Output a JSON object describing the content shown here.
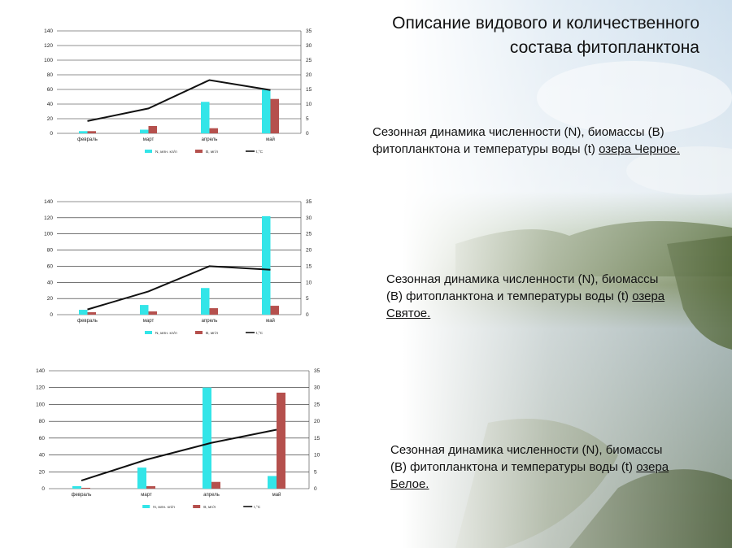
{
  "title": {
    "line1": "Описание видового и количественного",
    "line2": "состава фитопланктона"
  },
  "captions": [
    {
      "pre": "Сезонная динамика численности (N), биомассы (B) фитопланктона и температуры воды (t) ",
      "lake": "озера Черное."
    },
    {
      "pre": "Сезонная динамика численности (N), биомассы (B) фитопланктона и температуры воды (t) ",
      "lake": "озера Святое."
    },
    {
      "pre": "Сезонная динамика численности (N), биомассы (B) фитопланктона и температуры воды (t) ",
      "lake": "озера Белое."
    }
  ],
  "colors": {
    "n_bar": "#33e5e8",
    "b_bar": "#b5504d",
    "t_line": "#111111"
  },
  "chart_data": [
    {
      "type": "bar",
      "categories": [
        "февраль",
        "март",
        "апрель",
        "май"
      ],
      "series": [
        {
          "name": "N, млн. кл/л",
          "kind": "bar",
          "axis": "left",
          "values": [
            3,
            5,
            43,
            60
          ]
        },
        {
          "name": "B, мг/л",
          "kind": "bar",
          "axis": "left",
          "values": [
            3,
            10,
            7,
            47
          ]
        },
        {
          "name": "t,°C",
          "kind": "line",
          "axis": "right",
          "values": [
            4.2,
            8.5,
            18.2,
            14.8
          ]
        }
      ],
      "ylim": [
        0,
        140
      ],
      "yticks": [
        0,
        20,
        40,
        60,
        80,
        100,
        120,
        140
      ],
      "y2lim": [
        0,
        35
      ],
      "y2ticks": [
        0,
        5,
        10,
        15,
        20,
        25,
        30,
        35
      ],
      "grid": true,
      "legend": "bottom"
    },
    {
      "type": "bar",
      "categories": [
        "февраль",
        "март",
        "апрель",
        "май"
      ],
      "series": [
        {
          "name": "N, млн. кл/л",
          "kind": "bar",
          "axis": "left",
          "values": [
            6,
            12,
            33,
            122
          ]
        },
        {
          "name": "B, мг/л",
          "kind": "bar",
          "axis": "left",
          "values": [
            3,
            4,
            8,
            11
          ]
        },
        {
          "name": "t,°C",
          "kind": "line",
          "axis": "right",
          "values": [
            1.6,
            7.2,
            15,
            13.9
          ]
        }
      ],
      "ylim": [
        0,
        140
      ],
      "yticks": [
        0,
        20,
        40,
        60,
        80,
        100,
        120,
        140
      ],
      "y2lim": [
        0,
        35
      ],
      "y2ticks": [
        0,
        5,
        10,
        15,
        20,
        25,
        30,
        35
      ],
      "grid": true,
      "legend": "bottom"
    },
    {
      "type": "bar",
      "categories": [
        "февраль",
        "март",
        "апрель",
        "май"
      ],
      "series": [
        {
          "name": "N, млн. кл/л",
          "kind": "bar",
          "axis": "left",
          "values": [
            3,
            25,
            120,
            15
          ]
        },
        {
          "name": "B, мг/л",
          "kind": "bar",
          "axis": "left",
          "values": [
            1,
            3,
            8,
            114
          ]
        },
        {
          "name": "t,°C",
          "kind": "line",
          "axis": "right",
          "values": [
            2.4,
            8.6,
            13.6,
            17.5
          ]
        }
      ],
      "ylim": [
        0,
        140
      ],
      "yticks": [
        0,
        20,
        40,
        60,
        80,
        100,
        120,
        140
      ],
      "y2lim": [
        0,
        35
      ],
      "y2ticks": [
        0,
        5,
        10,
        15,
        20,
        25,
        30,
        35
      ],
      "grid": true,
      "legend": "bottom"
    }
  ]
}
